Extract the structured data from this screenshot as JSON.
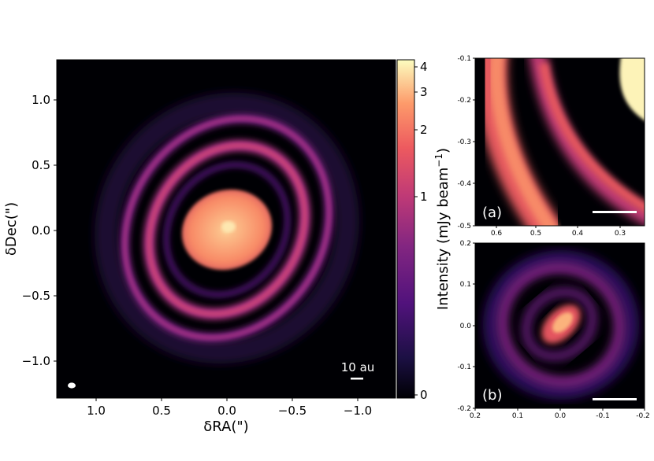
{
  "colormap": "magma",
  "colors": {
    "background": "#000004",
    "ring": "#b4367a",
    "core": "#f9916d",
    "peak": "#fcfdbf",
    "scale_bar": "#ffffff"
  },
  "main_panel": {
    "xlabel": "δRA(\")",
    "ylabel": "δDec(\")",
    "x_ticks": [
      "1.0",
      "0.5",
      "0.0",
      "−0.5",
      "−1.0"
    ],
    "y_ticks": [
      "1.0",
      "0.5",
      "0.0",
      "−0.5",
      "−1.0"
    ],
    "x_range": [
      1.3,
      -1.3
    ],
    "y_range": [
      -1.3,
      1.3
    ],
    "scale_bar_label": "10 au"
  },
  "colorbar": {
    "label": "Intensity (mJy beam",
    "label_sup": "−1",
    "label_end": ")",
    "ticks": [
      "4",
      "3",
      "2",
      "1",
      "0"
    ]
  },
  "inset_a": {
    "label": "(a)",
    "x_ticks": [
      "0.6",
      "0.5",
      "0.4",
      "0.3"
    ],
    "y_ticks": [
      "-0.1",
      "-0.2",
      "-0.3",
      "-0.4",
      "-0.5"
    ],
    "x_range": [
      0.65,
      0.25
    ],
    "y_range": [
      -0.5,
      -0.1
    ]
  },
  "inset_b": {
    "label": "(b)",
    "x_ticks": [
      "0.2",
      "0.1",
      "0.0",
      "-0.1",
      "-0.2"
    ],
    "y_ticks": [
      "0.2",
      "0.1",
      "0.0",
      "-0.1",
      "-0.2"
    ],
    "x_range": [
      0.2,
      -0.2
    ],
    "y_range": [
      -0.2,
      0.2
    ]
  }
}
